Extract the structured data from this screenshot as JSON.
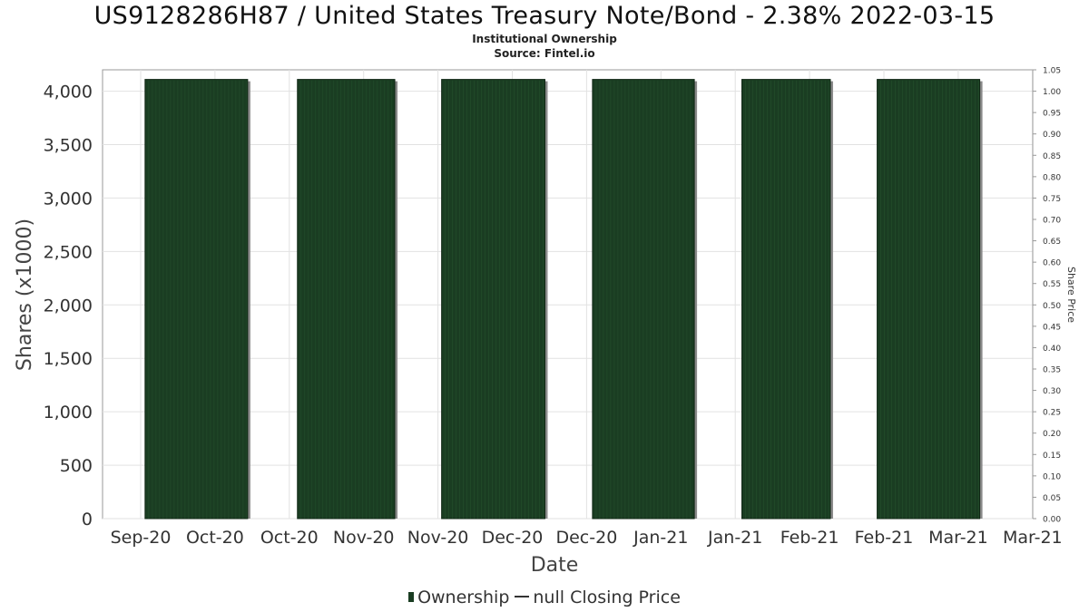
{
  "chart_data": {
    "type": "bar",
    "title": "US9128286H87 / United States Treasury Note/Bond - 2.38% 2022-03-15",
    "subtitle": "Institutional Ownership",
    "source": "Source: Fintel.io",
    "xlabel": "Date",
    "ylabel": "Shares (x1000)",
    "y2label": "Share Price",
    "ylim": [
      0,
      4200
    ],
    "y2lim": [
      0,
      1.05
    ],
    "yticks": [
      "0",
      "500",
      "1,000",
      "1,500",
      "2,000",
      "2,500",
      "3,000",
      "3,500",
      "4,000"
    ],
    "ytick_values": [
      0,
      500,
      1000,
      1500,
      2000,
      2500,
      3000,
      3500,
      4000
    ],
    "y2ticks": [
      "0.00",
      "0.05",
      "0.10",
      "0.15",
      "0.20",
      "0.25",
      "0.30",
      "0.35",
      "0.40",
      "0.45",
      "0.50",
      "0.55",
      "0.60",
      "0.65",
      "0.70",
      "0.75",
      "0.80",
      "0.85",
      "0.90",
      "0.95",
      "1.00",
      "1.05"
    ],
    "xticks": [
      "Sep-20",
      "Oct-20",
      "Oct-20",
      "Nov-20",
      "Nov-20",
      "Dec-20",
      "Dec-20",
      "Jan-21",
      "Jan-21",
      "Feb-21",
      "Feb-21",
      "Mar-21",
      "Mar-21"
    ],
    "series": [
      {
        "name": "Ownership",
        "color": "#1a3d22",
        "bars": [
          {
            "start": 0.45,
            "end": 1.83,
            "value": 4110
          },
          {
            "start": 2.5,
            "end": 3.81,
            "value": 4110
          },
          {
            "start": 4.44,
            "end": 5.83,
            "value": 4110
          },
          {
            "start": 6.47,
            "end": 7.84,
            "value": 4110
          },
          {
            "start": 8.48,
            "end": 9.67,
            "value": 4110
          },
          {
            "start": 10.3,
            "end": 11.68,
            "value": 4110
          }
        ]
      }
    ],
    "grid": true,
    "legend_position": "bottom"
  },
  "legend": {
    "ownership_label": "Ownership",
    "closing_price_label": "null Closing Price"
  }
}
